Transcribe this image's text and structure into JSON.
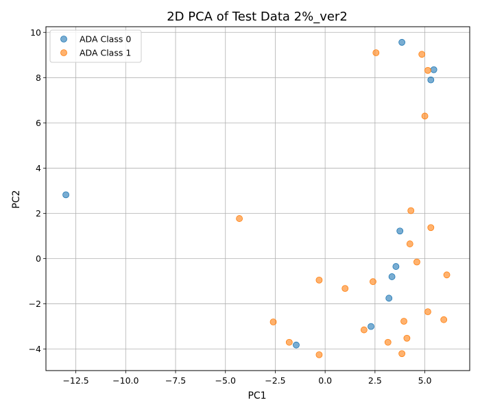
{
  "chart_data": {
    "type": "scatter",
    "title": "2D PCA of Test Data 2%_ver2",
    "xlabel": "PC1",
    "ylabel": "PC2",
    "xlim": [
      -14,
      7.25
    ],
    "ylim": [
      -4.95,
      10.25
    ],
    "xticks": [
      -12.5,
      -10.0,
      -7.5,
      -5.0,
      -2.5,
      0.0,
      2.5,
      5.0
    ],
    "xtick_labels": [
      "−12.5",
      "−10.0",
      "−7.5",
      "−5.0",
      "−2.5",
      "0.0",
      "2.5",
      "5.0"
    ],
    "yticks": [
      -4,
      -2,
      0,
      2,
      4,
      6,
      8,
      10
    ],
    "ytick_labels": [
      "−4",
      "−2",
      "0",
      "2",
      "4",
      "6",
      "8",
      "10"
    ],
    "grid": true,
    "legend_position": "top-left",
    "series": [
      {
        "name": "ADA Class 0",
        "color": "#1f77b4",
        "points": [
          [
            -13.0,
            2.82
          ],
          [
            3.85,
            9.56
          ],
          [
            5.45,
            8.35
          ],
          [
            5.3,
            7.9
          ],
          [
            3.75,
            1.22
          ],
          [
            3.55,
            -0.35
          ],
          [
            3.35,
            -0.8
          ],
          [
            3.2,
            -1.75
          ],
          [
            2.3,
            -3.0
          ],
          [
            -1.45,
            -3.82
          ]
        ]
      },
      {
        "name": "ADA Class 1",
        "color": "#ff7f0e",
        "points": [
          [
            2.55,
            9.1
          ],
          [
            4.85,
            9.03
          ],
          [
            5.15,
            8.32
          ],
          [
            5.0,
            6.3
          ],
          [
            4.3,
            2.12
          ],
          [
            5.3,
            1.37
          ],
          [
            -4.3,
            1.77
          ],
          [
            4.25,
            0.65
          ],
          [
            4.6,
            -0.15
          ],
          [
            6.1,
            -0.72
          ],
          [
            -0.3,
            -0.95
          ],
          [
            2.4,
            -1.02
          ],
          [
            1.0,
            -1.32
          ],
          [
            5.15,
            -2.35
          ],
          [
            5.95,
            -2.7
          ],
          [
            3.95,
            -2.77
          ],
          [
            -2.6,
            -2.8
          ],
          [
            1.95,
            -3.15
          ],
          [
            4.1,
            -3.52
          ],
          [
            -1.8,
            -3.7
          ],
          [
            3.15,
            -3.7
          ],
          [
            3.85,
            -4.2
          ],
          [
            -0.3,
            -4.25
          ]
        ]
      }
    ]
  }
}
